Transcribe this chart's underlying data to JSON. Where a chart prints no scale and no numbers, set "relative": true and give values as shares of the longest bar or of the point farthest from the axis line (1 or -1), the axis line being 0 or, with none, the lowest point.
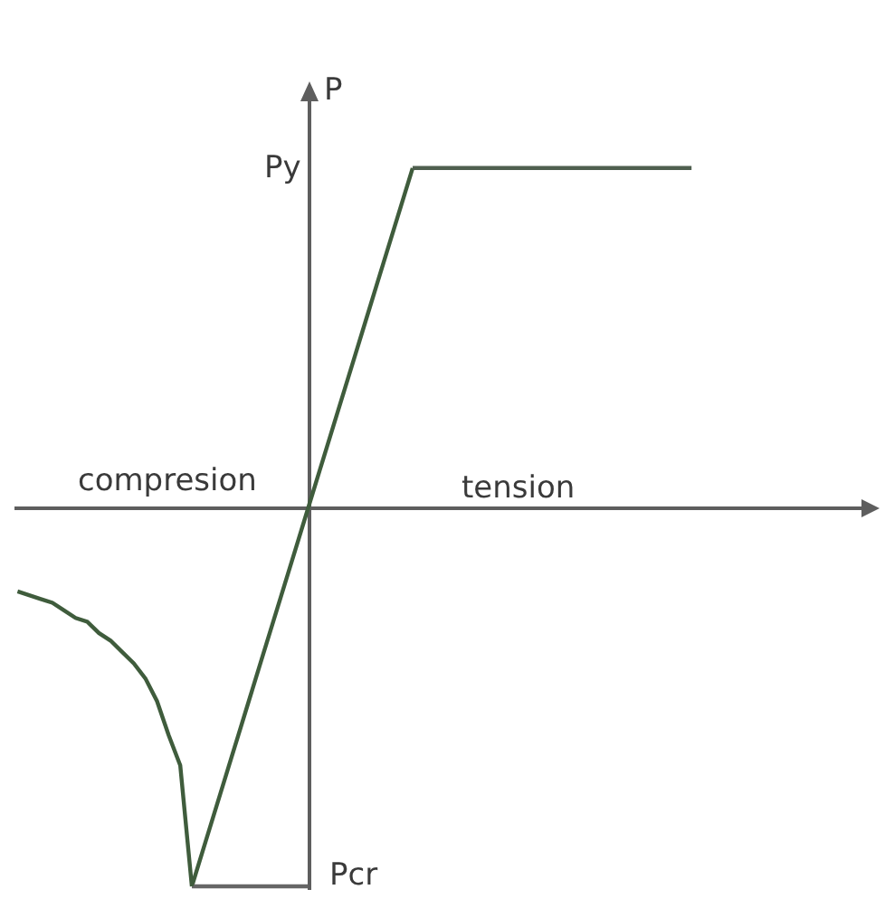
{
  "chart_data": {
    "type": "line",
    "relative": true,
    "ylabel": "P",
    "marker": "none",
    "line_style": "solid",
    "categories": [
      null,
      null,
      null,
      null,
      null,
      null,
      null,
      null,
      null,
      null,
      null,
      null,
      null,
      null,
      null,
      null,
      null,
      null,
      null,
      null,
      null,
      null,
      null,
      null,
      null,
      null,
      null,
      null,
      null,
      null,
      null,
      null,
      null,
      null,
      null,
      null,
      null,
      null,
      null,
      null,
      null,
      null,
      null,
      null,
      null,
      null,
      null,
      null,
      null,
      null,
      null,
      null,
      null,
      null,
      null,
      null,
      null,
      null,
      null
    ],
    "series": [
      {
        "color": "#3f5c3c",
        "values": [
          null,
          null,
          null,
          null,
          null,
          null,
          null,
          null,
          null,
          null,
          null,
          null,
          null,
          null,
          null,
          -1,
          -0.9,
          -0.8,
          -0.7,
          -0.6,
          -0.5,
          -0.4,
          -0.3,
          -0.2,
          -0.1,
          0,
          0.1,
          0.2,
          0.3,
          0.4,
          0.5,
          0.6,
          0.7,
          0.8,
          0.9,
          null,
          null,
          null,
          null,
          null,
          null,
          null,
          null,
          null,
          null,
          null,
          null,
          null,
          null,
          null,
          null,
          null,
          null,
          null,
          null,
          null,
          null,
          null,
          null
        ]
      },
      {
        "color": "#4f5f4f",
        "values": [
          null,
          null,
          null,
          null,
          null,
          null,
          null,
          null,
          null,
          null,
          null,
          null,
          null,
          null,
          null,
          null,
          null,
          null,
          null,
          null,
          null,
          null,
          null,
          null,
          null,
          null,
          null,
          null,
          null,
          null,
          null,
          null,
          null,
          null,
          0.9,
          0.9,
          0.9,
          0.9,
          0.9,
          0.9,
          0.9,
          0.9,
          0.9,
          0.9,
          0.9,
          0.9,
          0.9,
          0.9,
          0.9,
          0.9,
          0.9,
          0.9,
          0.9,
          0.9,
          0.9,
          0.9,
          0.9,
          0.9,
          0.9
        ]
      },
      {
        "color": "#666666",
        "values": [
          null,
          null,
          null,
          null,
          null,
          null,
          null,
          null,
          null,
          null,
          null,
          null,
          null,
          null,
          null,
          -1,
          -1,
          -1,
          -1,
          -1,
          -1,
          -1,
          -1,
          -1,
          -1,
          -1,
          null,
          null,
          null,
          null,
          null,
          null,
          null,
          null,
          null,
          null,
          null,
          null,
          null,
          null,
          null,
          null,
          null,
          null,
          null,
          null,
          null,
          null,
          null,
          null,
          null,
          null,
          null,
          null,
          null,
          null,
          null,
          null,
          null
        ]
      },
      {
        "color": "#3f5c3c",
        "values": [
          -0.22,
          -0.23,
          -0.24,
          -0.25,
          -0.27,
          -0.29,
          -0.3,
          -0.33,
          -0.35,
          -0.38,
          -0.41,
          -0.45,
          -0.51,
          -0.6,
          -0.68,
          -1,
          null,
          null,
          null,
          null,
          null,
          null,
          null,
          null,
          null,
          null,
          null,
          null,
          null,
          null,
          null,
          null,
          null,
          null,
          null,
          null,
          null,
          null,
          null,
          null,
          null,
          null,
          null,
          null,
          null,
          null,
          null,
          null,
          null,
          null,
          null,
          null,
          null,
          null,
          null,
          null,
          null,
          null,
          null
        ]
      }
    ],
    "annotations": [
      "Py",
      "compresion",
      "tension",
      "Pcr"
    ]
  }
}
